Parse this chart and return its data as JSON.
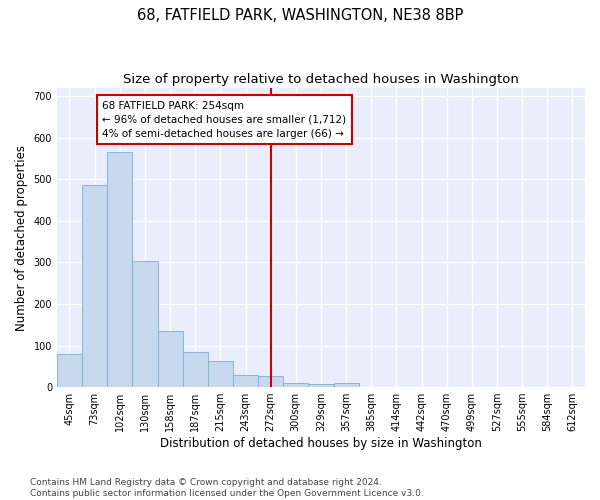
{
  "title": "68, FATFIELD PARK, WASHINGTON, NE38 8BP",
  "subtitle": "Size of property relative to detached houses in Washington",
  "xlabel": "Distribution of detached houses by size in Washington",
  "ylabel": "Number of detached properties",
  "categories": [
    "45sqm",
    "73sqm",
    "102sqm",
    "130sqm",
    "158sqm",
    "187sqm",
    "215sqm",
    "243sqm",
    "272sqm",
    "300sqm",
    "329sqm",
    "357sqm",
    "385sqm",
    "414sqm",
    "442sqm",
    "470sqm",
    "499sqm",
    "527sqm",
    "555sqm",
    "584sqm",
    "612sqm"
  ],
  "values": [
    79,
    487,
    565,
    304,
    136,
    85,
    64,
    30,
    27,
    11,
    8,
    10,
    0,
    0,
    0,
    0,
    0,
    0,
    0,
    0,
    0
  ],
  "bar_color": "#c8d9ef",
  "bar_edge_color": "#7aadd4",
  "vline_x": 8,
  "vline_color": "#cc0000",
  "annotation_text": "68 FATFIELD PARK: 254sqm\n← 96% of detached houses are smaller (1,712)\n4% of semi-detached houses are larger (66) →",
  "annotation_box_color": "#cc0000",
  "ylim": [
    0,
    720
  ],
  "yticks": [
    0,
    100,
    200,
    300,
    400,
    500,
    600,
    700
  ],
  "footnote": "Contains HM Land Registry data © Crown copyright and database right 2024.\nContains public sector information licensed under the Open Government Licence v3.0.",
  "bg_color": "#eaeefc",
  "grid_color": "#ffffff",
  "title_fontsize": 10.5,
  "subtitle_fontsize": 9.5,
  "axis_label_fontsize": 8.5,
  "tick_fontsize": 7,
  "footnote_fontsize": 6.5,
  "annot_fontsize": 7.5
}
